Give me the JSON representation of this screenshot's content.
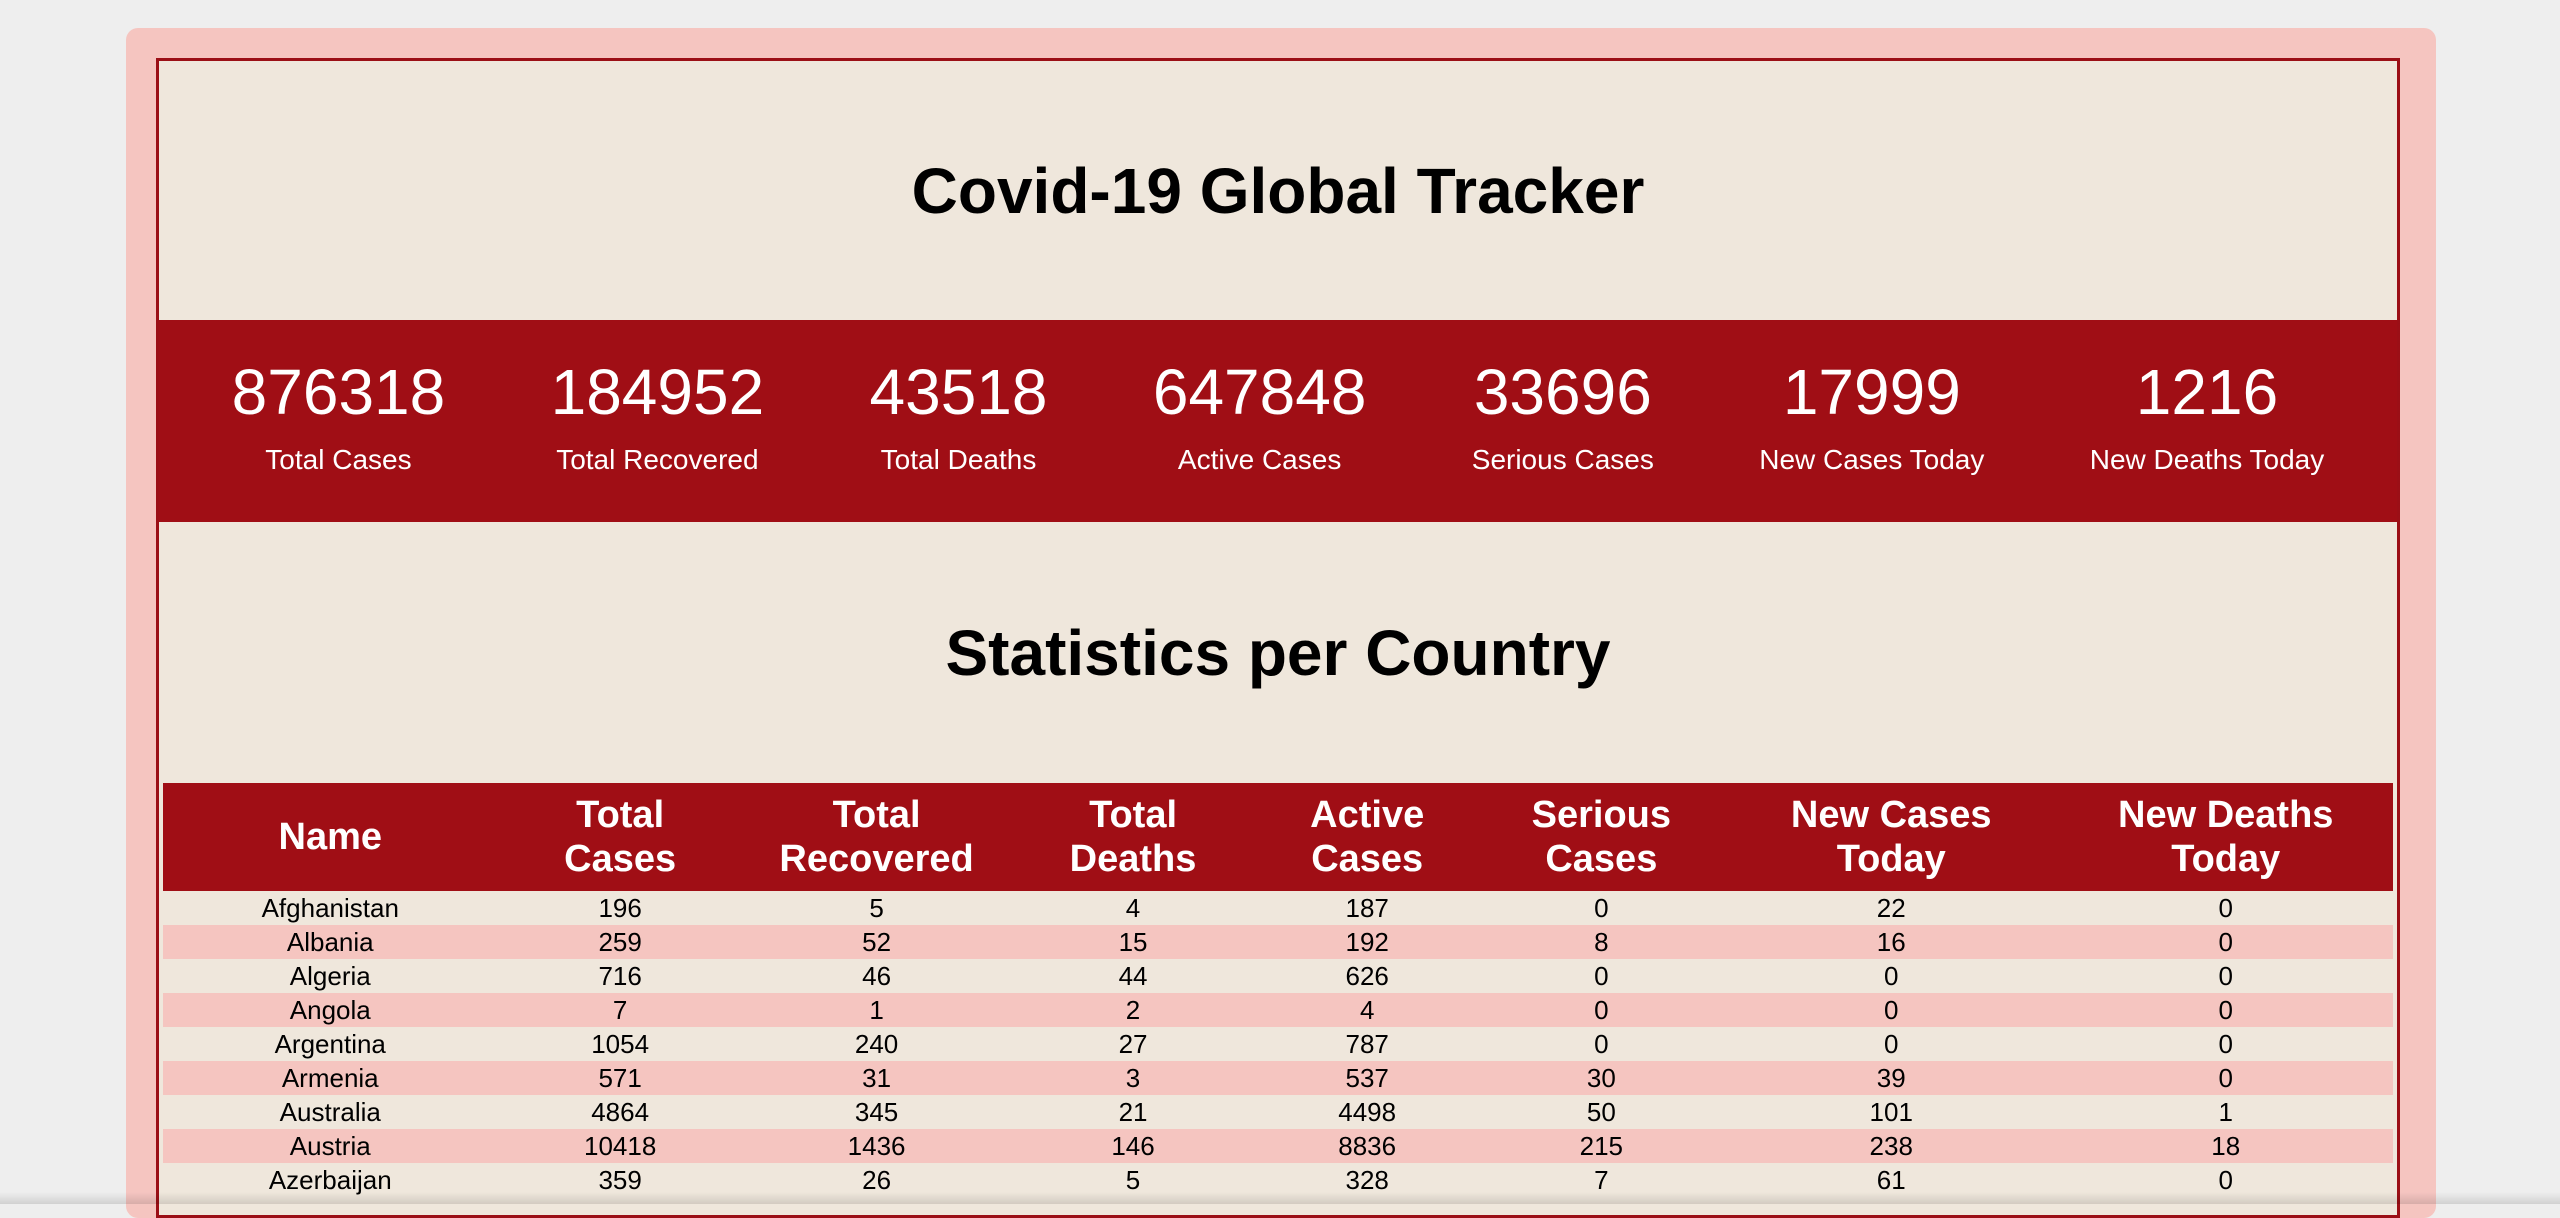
{
  "header": {
    "title": "Covid-19 Global Tracker"
  },
  "stats": [
    {
      "value": "876318",
      "label": "Total Cases"
    },
    {
      "value": "184952",
      "label": "Total Recovered"
    },
    {
      "value": "43518",
      "label": "Total Deaths"
    },
    {
      "value": "647848",
      "label": "Active Cases"
    },
    {
      "value": "33696",
      "label": "Serious Cases"
    },
    {
      "value": "17999",
      "label": "New Cases Today"
    },
    {
      "value": "1216",
      "label": "New Deaths Today"
    }
  ],
  "section": {
    "title": "Statistics per Country"
  },
  "table": {
    "headers": [
      [
        "Name"
      ],
      [
        "Total",
        "Cases"
      ],
      [
        "Total",
        "Recovered"
      ],
      [
        "Total",
        "Deaths"
      ],
      [
        "Active",
        "Cases"
      ],
      [
        "Serious",
        "Cases"
      ],
      [
        "New Cases",
        "Today"
      ],
      [
        "New Deaths",
        "Today"
      ]
    ],
    "rows": [
      [
        "Afghanistan",
        "196",
        "5",
        "4",
        "187",
        "0",
        "22",
        "0"
      ],
      [
        "Albania",
        "259",
        "52",
        "15",
        "192",
        "8",
        "16",
        "0"
      ],
      [
        "Algeria",
        "716",
        "46",
        "44",
        "626",
        "0",
        "0",
        "0"
      ],
      [
        "Angola",
        "7",
        "1",
        "2",
        "4",
        "0",
        "0",
        "0"
      ],
      [
        "Argentina",
        "1054",
        "240",
        "27",
        "787",
        "0",
        "0",
        "0"
      ],
      [
        "Armenia",
        "571",
        "31",
        "3",
        "537",
        "30",
        "39",
        "0"
      ],
      [
        "Australia",
        "4864",
        "345",
        "21",
        "4498",
        "50",
        "101",
        "1"
      ],
      [
        "Austria",
        "10418",
        "1436",
        "146",
        "8836",
        "215",
        "238",
        "18"
      ],
      [
        "Azerbaijan",
        "359",
        "26",
        "5",
        "328",
        "7",
        "61",
        "0"
      ]
    ]
  },
  "colors": {
    "accent_red": "#a00e15",
    "cream": "#efe7dc",
    "pink": "#f5c5c0"
  }
}
